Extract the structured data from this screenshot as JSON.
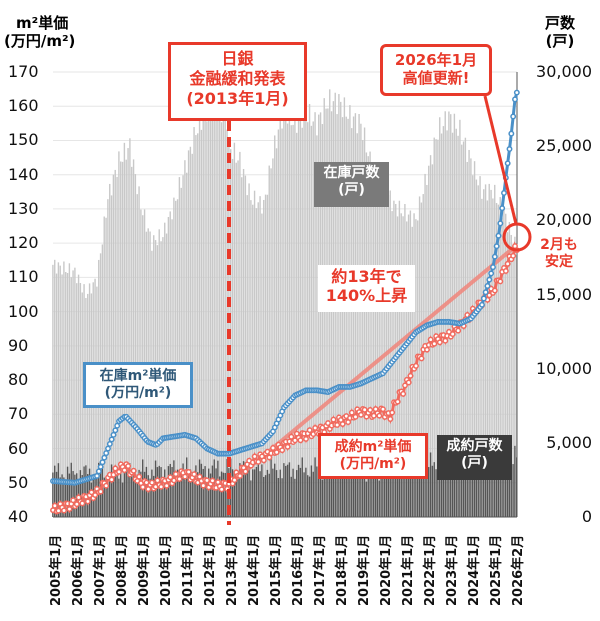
{
  "chart_data": {
    "type": "bar+line",
    "left_axis": {
      "title_line1": "m²単価",
      "title_line2": "(万円/m²)",
      "ylim": [
        40,
        170
      ],
      "ticks": [
        40,
        50,
        60,
        70,
        80,
        90,
        100,
        110,
        120,
        130,
        140,
        150,
        160,
        170
      ]
    },
    "right_axis": {
      "title_line1": "戸数",
      "title_line2": "(戸)",
      "ylim": [
        0,
        30000
      ],
      "ticks": [
        "0",
        "5,000",
        "10,000",
        "15,000",
        "20,000",
        "25,000",
        "30,000"
      ],
      "tick_values": [
        0,
        5000,
        10000,
        15000,
        20000,
        25000,
        30000
      ]
    },
    "x_ticks": [
      "2005年1月",
      "2006年1月",
      "2007年1月",
      "2008年1月",
      "2009年1月",
      "2010年1月",
      "2011年1月",
      "2012年1月",
      "2013年1月",
      "2014年1月",
      "2015年1月",
      "2016年1月",
      "2017年1月",
      "2018年1月",
      "2019年1月",
      "2020年1月",
      "2021年1月",
      "2022年1月",
      "2023年1月",
      "2024年1月",
      "2025年1月",
      "2026年2月"
    ],
    "grid": true,
    "series": [
      {
        "name": "在庫戸数(戸)",
        "axis": "right",
        "kind": "bar",
        "color": "#c8c8c8",
        "points": [
          [
            2005.0,
            17000
          ],
          [
            2006.0,
            16500
          ],
          [
            2006.5,
            15000
          ],
          [
            2007.0,
            16000
          ],
          [
            2007.5,
            21500
          ],
          [
            2008.0,
            24000
          ],
          [
            2008.5,
            25000
          ],
          [
            2009.0,
            21000
          ],
          [
            2009.5,
            18500
          ],
          [
            2010.0,
            19000
          ],
          [
            2010.5,
            21000
          ],
          [
            2011.0,
            23500
          ],
          [
            2011.5,
            26000
          ],
          [
            2012.0,
            27500
          ],
          [
            2012.9,
            27300
          ],
          [
            2013.0,
            25000
          ],
          [
            2013.5,
            24000
          ],
          [
            2014.0,
            21500
          ],
          [
            2014.6,
            21000
          ],
          [
            2015.0,
            24500
          ],
          [
            2015.5,
            27500
          ],
          [
            2016.0,
            26500
          ],
          [
            2016.5,
            27300
          ],
          [
            2017.0,
            26500
          ],
          [
            2017.5,
            28000
          ],
          [
            2018.0,
            28000
          ],
          [
            2018.5,
            27000
          ],
          [
            2019.0,
            26500
          ],
          [
            2019.5,
            23500
          ],
          [
            2020.0,
            22500
          ],
          [
            2020.5,
            21000
          ],
          [
            2021.0,
            20500
          ],
          [
            2021.5,
            20000
          ],
          [
            2022.0,
            23000
          ],
          [
            2022.5,
            26000
          ],
          [
            2023.0,
            27000
          ],
          [
            2023.5,
            26000
          ],
          [
            2024.0,
            24000
          ],
          [
            2024.5,
            22000
          ],
          [
            2025.0,
            22000
          ],
          [
            2025.5,
            20500
          ],
          [
            2026.08,
            18000
          ]
        ]
      },
      {
        "name": "成約戸数(戸)",
        "axis": "right",
        "kind": "bar",
        "color": "#555555",
        "points": [
          [
            2005.0,
            3000
          ],
          [
            2008.0,
            3000
          ],
          [
            2010.0,
            3200
          ],
          [
            2013.0,
            3300
          ],
          [
            2015.0,
            3200
          ],
          [
            2018.0,
            3300
          ],
          [
            2020.0,
            3100
          ],
          [
            2021.0,
            3600
          ],
          [
            2024.0,
            3300
          ],
          [
            2025.0,
            3800
          ],
          [
            2025.5,
            4300
          ],
          [
            2026.08,
            4000
          ]
        ]
      },
      {
        "name": "在庫m²単価(万円/m²)",
        "axis": "left",
        "kind": "line",
        "color": "#4a90c8",
        "points": [
          [
            2005.0,
            50.5
          ],
          [
            2006.0,
            50
          ],
          [
            2007.0,
            52
          ],
          [
            2007.5,
            60
          ],
          [
            2008.0,
            68
          ],
          [
            2008.3,
            69.5
          ],
          [
            2008.8,
            66
          ],
          [
            2009.3,
            62
          ],
          [
            2009.7,
            61
          ],
          [
            2010.0,
            63
          ],
          [
            2010.5,
            63.5
          ],
          [
            2011.0,
            64
          ],
          [
            2011.5,
            63
          ],
          [
            2012.0,
            60
          ],
          [
            2012.5,
            58.5
          ],
          [
            2013.0,
            58.5
          ],
          [
            2013.5,
            59.5
          ],
          [
            2014.0,
            60.5
          ],
          [
            2014.5,
            61.5
          ],
          [
            2015.0,
            65
          ],
          [
            2015.5,
            72
          ],
          [
            2016.0,
            75.5
          ],
          [
            2016.5,
            77
          ],
          [
            2017.0,
            77
          ],
          [
            2017.5,
            76.5
          ],
          [
            2018.0,
            78
          ],
          [
            2018.5,
            78
          ],
          [
            2019.0,
            79
          ],
          [
            2019.5,
            80.5
          ],
          [
            2020.0,
            82
          ],
          [
            2020.5,
            86
          ],
          [
            2021.0,
            90
          ],
          [
            2021.5,
            94
          ],
          [
            2022.0,
            96
          ],
          [
            2022.5,
            97
          ],
          [
            2023.0,
            97
          ],
          [
            2023.5,
            96.5
          ],
          [
            2024.0,
            98
          ],
          [
            2024.5,
            102
          ],
          [
            2025.0,
            113
          ],
          [
            2025.3,
            124
          ],
          [
            2025.6,
            140
          ],
          [
            2025.8,
            150
          ],
          [
            2026.0,
            162
          ],
          [
            2026.08,
            164
          ]
        ]
      },
      {
        "name": "成約m²単価(万円/m²)",
        "axis": "left",
        "kind": "line",
        "color": "#f06a5e",
        "points": [
          [
            2005.0,
            42
          ],
          [
            2006.0,
            44
          ],
          [
            2007.0,
            47
          ],
          [
            2007.5,
            51
          ],
          [
            2008.0,
            54
          ],
          [
            2008.3,
            55
          ],
          [
            2009.0,
            50
          ],
          [
            2009.5,
            49
          ],
          [
            2010.0,
            50
          ],
          [
            2010.5,
            51
          ],
          [
            2011.0,
            53
          ],
          [
            2011.5,
            51
          ],
          [
            2012.0,
            50
          ],
          [
            2012.5,
            49
          ],
          [
            2013.0,
            49.5
          ],
          [
            2013.5,
            53
          ],
          [
            2014.0,
            56
          ],
          [
            2015.0,
            59
          ],
          [
            2016.0,
            63
          ],
          [
            2017.0,
            65
          ],
          [
            2018.0,
            68
          ],
          [
            2018.5,
            69
          ],
          [
            2019.0,
            71
          ],
          [
            2019.5,
            70
          ],
          [
            2020.0,
            71
          ],
          [
            2020.3,
            69
          ],
          [
            2020.6,
            74
          ],
          [
            2021.0,
            78
          ],
          [
            2021.5,
            85
          ],
          [
            2022.0,
            90
          ],
          [
            2022.5,
            92
          ],
          [
            2023.0,
            93
          ],
          [
            2023.5,
            96
          ],
          [
            2024.0,
            99
          ],
          [
            2024.5,
            103
          ],
          [
            2025.0,
            106
          ],
          [
            2025.5,
            112
          ],
          [
            2026.0,
            118
          ],
          [
            2026.08,
            118
          ]
        ]
      }
    ],
    "trend_line": {
      "from": [
        2013.0,
        49.5
      ],
      "to": [
        2026.0,
        119
      ],
      "color": "#f0857a"
    },
    "event_line": {
      "x": 2013.0,
      "color": "#e8392a"
    },
    "annotations": {
      "boj_line1": "日銀",
      "boj_line2": "金融緩和発表",
      "boj_line3": "(2013年1月)",
      "high_line1": "2026年1月",
      "high_line2": "高値更新!",
      "inv_count_line1": "在庫戸数",
      "inv_count_line2": "(戸)",
      "inv_price_line1": "在庫m²単価",
      "inv_price_line2": "(万円/m²)",
      "rise_line1": "約13年で",
      "rise_line2": "140%上昇",
      "con_price_line1": "成約m²単価",
      "con_price_line2": "(万円/m²)",
      "con_count_line1": "成約戸数",
      "con_count_line2": "(戸)",
      "feb_line1": "2月も",
      "feb_line2": "安定"
    },
    "colors": {
      "red": "#e8392a",
      "blue": "#4a90c8",
      "gray_box": "#7a7a7a",
      "dark_box": "#3a3a3a"
    }
  }
}
